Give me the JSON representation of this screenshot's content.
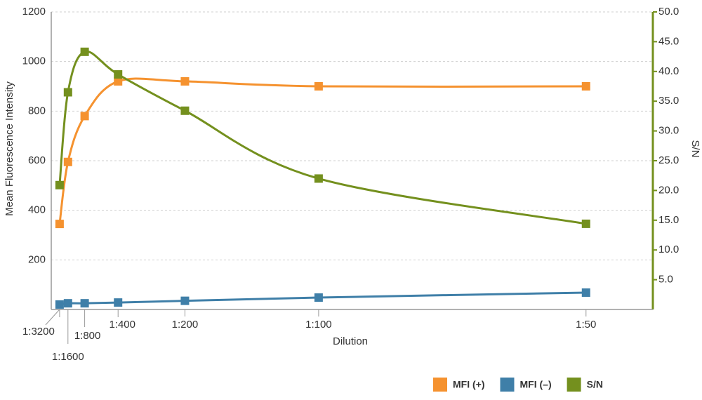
{
  "chart_data": {
    "type": "line",
    "x_label": "Dilution",
    "y_label": "Mean Fluorescence Intensity",
    "y2_label": "S/N",
    "x": [
      0.0003125,
      0.000625,
      0.00125,
      0.0025,
      0.005,
      0.01,
      0.02
    ],
    "xlim": [
      0,
      0.0225
    ],
    "xticks": [
      {
        "value": 0.0003125,
        "label": "1:3200"
      },
      {
        "value": 0.000625,
        "label": "1:1600"
      },
      {
        "value": 0.00125,
        "label": "1:800"
      },
      {
        "value": 0.0025,
        "label": "1:400"
      },
      {
        "value": 0.005,
        "label": "1:200"
      },
      {
        "value": 0.01,
        "label": "1:100"
      },
      {
        "value": 0.02,
        "label": "1:50"
      }
    ],
    "ylim": [
      0,
      1200
    ],
    "yticks": [
      200,
      400,
      600,
      800,
      1000,
      1200
    ],
    "y2lim": [
      0,
      50
    ],
    "y2ticks": [
      {
        "value": 5,
        "label": "5.0"
      },
      {
        "value": 10,
        "label": "10.0"
      },
      {
        "value": 15,
        "label": "15.0"
      },
      {
        "value": 20,
        "label": "20.0"
      },
      {
        "value": 25,
        "label": "25.0"
      },
      {
        "value": 30,
        "label": "30.0"
      },
      {
        "value": 35,
        "label": "35.0"
      },
      {
        "value": 40,
        "label": "40.0"
      },
      {
        "value": 45,
        "label": "45.0"
      },
      {
        "value": 50,
        "label": "50.0"
      }
    ],
    "grid": true,
    "legend": "bottom-right",
    "series": [
      {
        "name": "MFI (+)",
        "color": "#f5922f",
        "values": [
          345,
          595,
          780,
          920,
          920,
          900,
          900
        ]
      },
      {
        "name": "MFI (–)",
        "color": "#3f7fa8",
        "values": [
          20,
          25,
          25,
          28,
          35,
          48,
          68
        ]
      },
      {
        "name": "S/N",
        "color": "#74901e",
        "axis": "y2",
        "values": [
          20.9,
          36.5,
          43.3,
          39.5,
          33.4,
          22,
          14.4
        ]
      }
    ]
  }
}
